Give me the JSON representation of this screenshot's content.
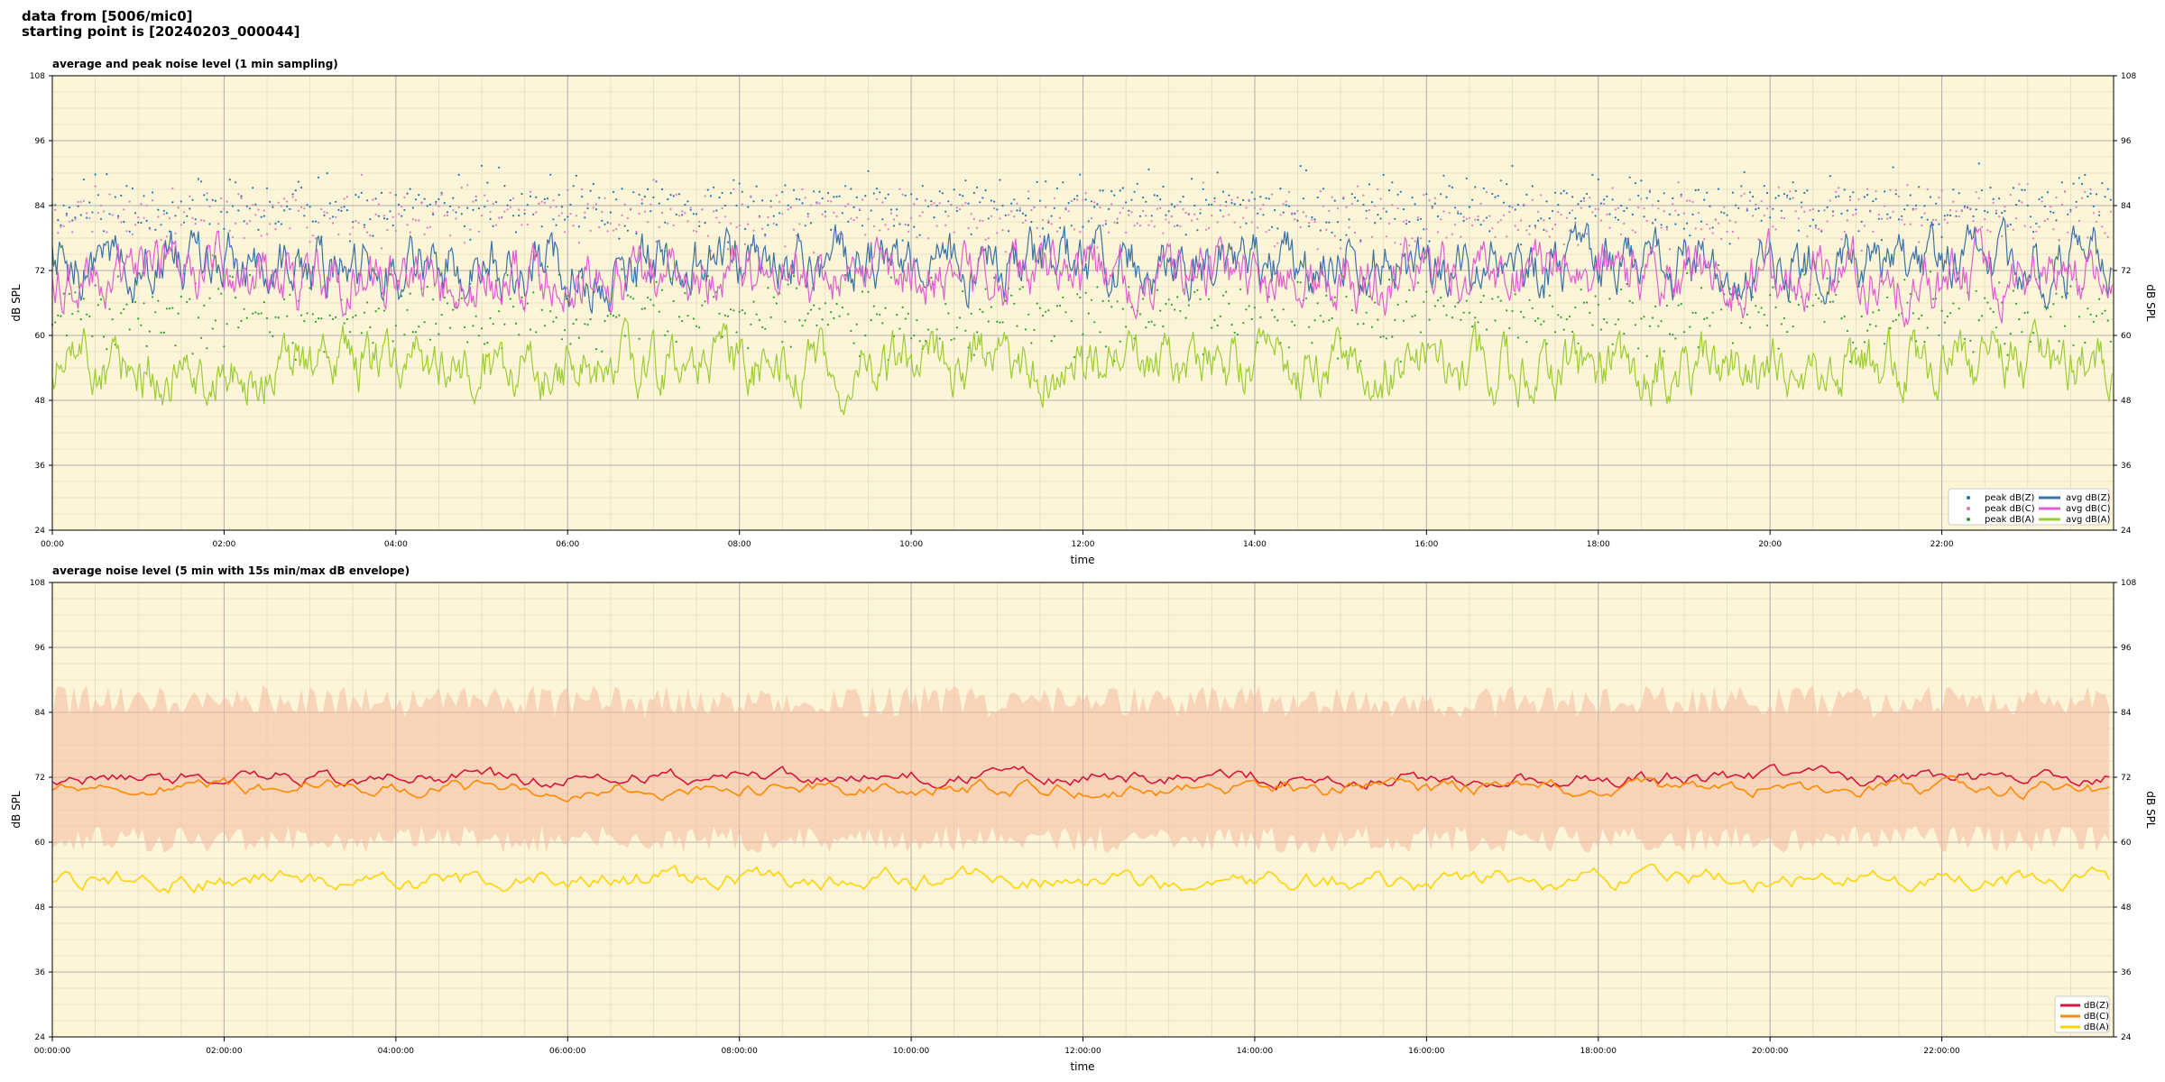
{
  "header": {
    "line1": "data from [5006/mic0]",
    "line2": "starting point is [20240203_000044]"
  },
  "chart_data": [
    {
      "type": "line",
      "title": "average and peak noise level (1 min sampling)",
      "xlabel": "time",
      "ylabel": "dB SPL",
      "ylim": [
        24,
        108
      ],
      "xlim_hours": [
        0,
        24
      ],
      "yticks": [
        "24",
        "36",
        "48",
        "60",
        "72",
        "84",
        "96",
        "108"
      ],
      "xticks": [
        "00:00",
        "02:00",
        "04:00",
        "06:00",
        "08:00",
        "10:00",
        "12:00",
        "14:00",
        "16:00",
        "18:00",
        "20:00",
        "22:00"
      ],
      "background": "#fdf5d8",
      "grid": true,
      "legend_position": "bottom-right",
      "series": [
        {
          "name": "peak dB(Z)",
          "kind": "scatter",
          "color": "#1f77b4",
          "mean": 84,
          "spread": 4
        },
        {
          "name": "peak dB(C)",
          "kind": "scatter",
          "color": "#e377c2",
          "mean": 82,
          "spread": 4
        },
        {
          "name": "peak dB(A)",
          "kind": "scatter",
          "color": "#2ca02c",
          "mean": 64,
          "spread": 5
        },
        {
          "name": "avg dB(Z)",
          "kind": "line",
          "color": "#3a72a8",
          "mean": 73,
          "spread": 4.5
        },
        {
          "name": "avg dB(C)",
          "kind": "line",
          "color": "#e05fd0",
          "mean": 71,
          "spread": 4.5
        },
        {
          "name": "avg dB(A)",
          "kind": "line",
          "color": "#9acd32",
          "mean": 54,
          "spread": 4.5
        }
      ]
    },
    {
      "type": "line",
      "title": "average noise level (5 min with 15s min/max dB envelope)",
      "xlabel": "time",
      "ylabel": "dB SPL",
      "ylim": [
        24,
        108
      ],
      "xlim_hours": [
        0,
        24
      ],
      "yticks": [
        "24",
        "36",
        "48",
        "60",
        "72",
        "84",
        "96",
        "108"
      ],
      "xticks": [
        "00:00:00",
        "02:00:00",
        "04:00:00",
        "06:00:00",
        "08:00:00",
        "10:00:00",
        "12:00:00",
        "14:00:00",
        "16:00:00",
        "18:00:00",
        "20:00:00",
        "22:00:00"
      ],
      "background": "#fdf5d8",
      "grid": true,
      "legend_position": "bottom-right",
      "envelope": {
        "color": "#f4b9a0",
        "min": 60,
        "max": 86
      },
      "series": [
        {
          "name": "dB(Z)",
          "color": "#d6163c",
          "mean": 72,
          "spread": 2.2
        },
        {
          "name": "dB(C)",
          "color": "#ff8a00",
          "mean": 70,
          "spread": 2.2
        },
        {
          "name": "dB(A)",
          "color": "#ffd400",
          "mean": 53,
          "spread": 3
        }
      ]
    }
  ]
}
